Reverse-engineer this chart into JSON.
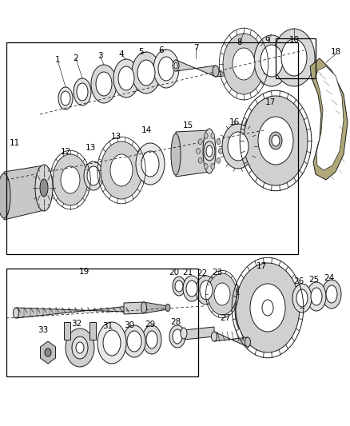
{
  "bg_color": "#ffffff",
  "line_color": "#1a1a1a",
  "gray_fill": "#e0e0e0",
  "dark_gray": "#aaaaaa",
  "mid_gray": "#cccccc",
  "light_gray": "#f0f0f0",
  "figsize": [
    4.38,
    5.33
  ],
  "dpi": 100
}
